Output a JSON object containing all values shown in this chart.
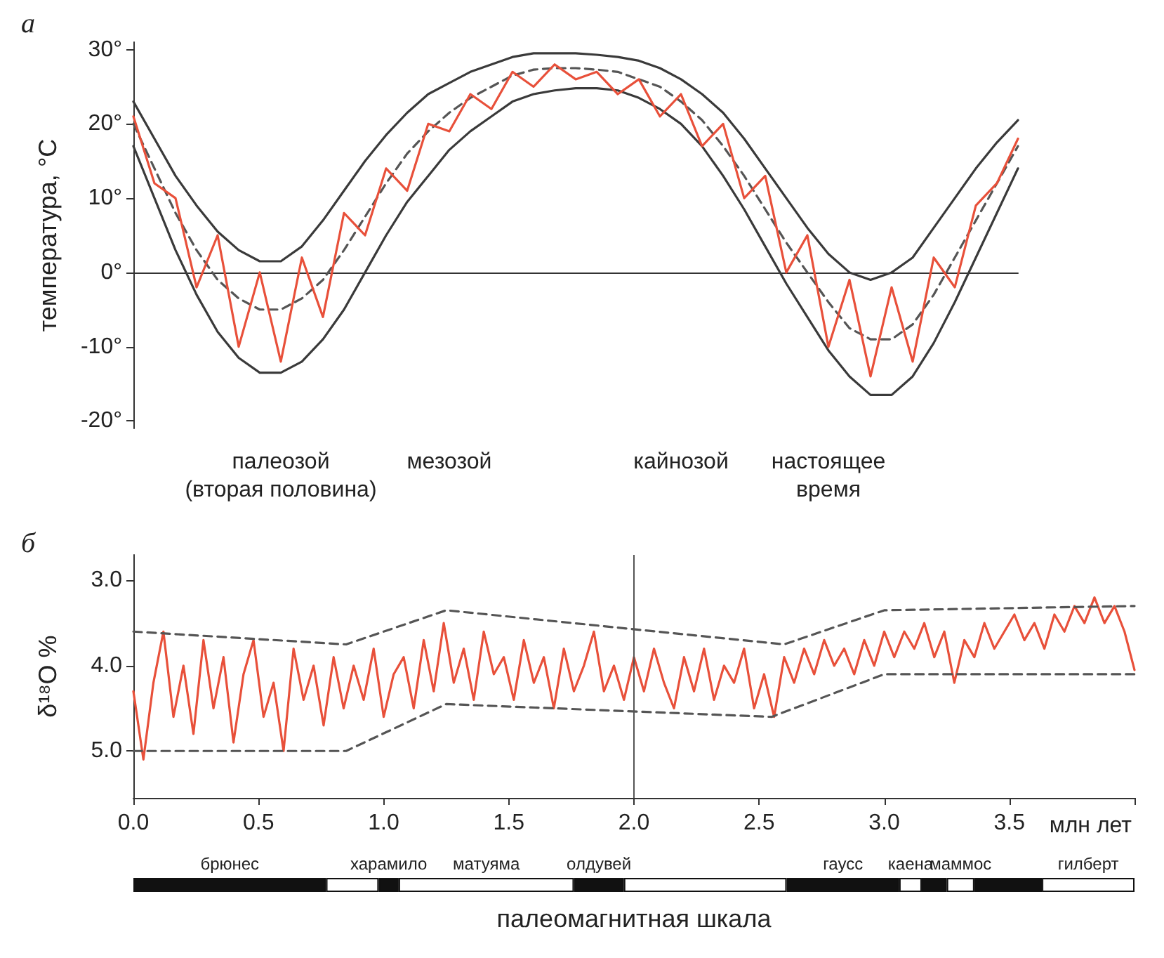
{
  "chart_data": [
    {
      "type": "line",
      "title": "а",
      "ylabel": "температура, °C",
      "categories": [
        null,
        null,
        null,
        null,
        null,
        null,
        null,
        "палеозой\n(вторая половина)",
        null,
        null,
        null,
        null,
        null,
        null,
        null,
        "мезозой",
        null,
        null,
        null,
        null,
        null,
        null,
        null,
        null,
        null,
        null,
        "кайнозой",
        null,
        null,
        null,
        null,
        null,
        null,
        "настоящее\nвремя",
        null,
        null,
        null,
        null,
        null,
        null,
        null,
        null,
        null
      ],
      "ylim": [
        -21,
        31
      ],
      "yticks": [
        {
          "value": -20,
          "label": "-20°"
        },
        {
          "value": -10,
          "label": "-10°"
        },
        {
          "value": 0,
          "label": "0°"
        },
        {
          "value": 10,
          "label": "10°"
        },
        {
          "value": 20,
          "label": "20°"
        },
        {
          "value": 30,
          "label": "30°"
        }
      ],
      "series": [
        {
          "color": "#3a3a3a",
          "values": [
            23,
            18,
            13,
            9,
            5.5,
            3,
            1.5,
            1.5,
            3.5,
            7,
            11,
            15,
            18.5,
            21.5,
            24,
            25.5,
            27,
            28,
            29,
            29.5,
            29.5,
            29.5,
            29.3,
            29,
            28.5,
            27.5,
            26,
            24,
            21.5,
            18,
            14,
            10,
            6,
            2.5,
            0,
            -1,
            0,
            2,
            6,
            10,
            14,
            17.5,
            20.5
          ]
        },
        {
          "color": "#3a3a3a",
          "values": [
            17,
            10,
            3,
            -3,
            -8,
            -11.5,
            -13.5,
            -13.5,
            -12,
            -9,
            -5,
            0,
            5,
            9.5,
            13,
            16.5,
            19,
            21,
            23,
            24,
            24.5,
            24.8,
            24.8,
            24.5,
            23.5,
            22,
            20,
            17,
            13,
            8.5,
            3.5,
            -1.5,
            -6,
            -10.5,
            -14,
            -16.5,
            -16.5,
            -14,
            -9.5,
            -4,
            2,
            8,
            14
          ]
        },
        {
          "color": "#555555",
          "line_style": "dashed",
          "values": [
            20,
            14,
            8,
            3,
            -1,
            -3.5,
            -5,
            -5,
            -3.5,
            -1,
            3,
            7.5,
            12,
            16,
            19,
            21.5,
            23.5,
            25,
            26.5,
            27.3,
            27.5,
            27.5,
            27.3,
            27,
            26,
            25,
            23,
            20.5,
            17,
            13,
            8.5,
            4,
            0,
            -4,
            -7.5,
            -9,
            -9,
            -7,
            -3,
            2,
            7,
            12,
            17
          ]
        },
        {
          "color": "#e8503a",
          "values": [
            21,
            12,
            10,
            -2,
            5,
            -10,
            0,
            -12,
            2,
            -6,
            8,
            5,
            14,
            11,
            20,
            19,
            24,
            22,
            27,
            25,
            28,
            26,
            27,
            24,
            26,
            21,
            24,
            17,
            20,
            10,
            13,
            0,
            5,
            -10,
            -1,
            -14,
            -2,
            -12,
            2,
            -2,
            9,
            12,
            18
          ]
        }
      ]
    },
    {
      "type": "line",
      "title": "б",
      "ylabel": "δ¹⁸O %",
      "xlabel": "млн лет",
      "xlim": [
        0,
        4
      ],
      "xticks": [
        {
          "value": 0,
          "label": "0.0"
        },
        {
          "value": 0.5,
          "label": "0.5"
        },
        {
          "value": 1,
          "label": "1.0"
        },
        {
          "value": 1.5,
          "label": "1.5"
        },
        {
          "value": 2,
          "label": "2.0"
        },
        {
          "value": 2.5,
          "label": "2.5"
        },
        {
          "value": 3,
          "label": "3.0"
        },
        {
          "value": 3.5,
          "label": "3.5"
        },
        {
          "value": 4,
          "label": null
        }
      ],
      "ylim": [
        5.55,
        2.7
      ],
      "yticks": [
        {
          "value": 3,
          "label": "3.0"
        },
        {
          "value": 4,
          "label": "4.0"
        },
        {
          "value": 5,
          "label": "5.0"
        }
      ],
      "series": [
        {
          "color": "#e8503a",
          "x": [
            0,
            0.04,
            0.08,
            0.12,
            0.16,
            0.2,
            0.24,
            0.28,
            0.32,
            0.36,
            0.4,
            0.44,
            0.48,
            0.52,
            0.56,
            0.6,
            0.64,
            0.68,
            0.72,
            0.76,
            0.8,
            0.84,
            0.88,
            0.92,
            0.96,
            1,
            1.04,
            1.08,
            1.12,
            1.16,
            1.2,
            1.24,
            1.28,
            1.32,
            1.36,
            1.4,
            1.44,
            1.48,
            1.52,
            1.56,
            1.6,
            1.64,
            1.68,
            1.72,
            1.76,
            1.8,
            1.84,
            1.88,
            1.92,
            1.96,
            2,
            2.04,
            2.08,
            2.12,
            2.16,
            2.2,
            2.24,
            2.28,
            2.32,
            2.36,
            2.4,
            2.44,
            2.48,
            2.52,
            2.56,
            2.6,
            2.64,
            2.68,
            2.72,
            2.76,
            2.8,
            2.84,
            2.88,
            2.92,
            2.96,
            3,
            3.04,
            3.08,
            3.12,
            3.16,
            3.2,
            3.24,
            3.28,
            3.32,
            3.36,
            3.4,
            3.44,
            3.48,
            3.52,
            3.56,
            3.6,
            3.64,
            3.68,
            3.72,
            3.76,
            3.8,
            3.84,
            3.88,
            3.92,
            3.96,
            4
          ],
          "values": [
            4.3,
            5.1,
            4.2,
            3.6,
            4.6,
            4.0,
            4.8,
            3.7,
            4.5,
            3.9,
            4.9,
            4.1,
            3.7,
            4.6,
            4.2,
            5.0,
            3.8,
            4.4,
            4.0,
            4.7,
            3.9,
            4.5,
            4.0,
            4.4,
            3.8,
            4.6,
            4.1,
            3.9,
            4.5,
            3.7,
            4.3,
            3.5,
            4.2,
            3.8,
            4.4,
            3.6,
            4.1,
            3.9,
            4.4,
            3.7,
            4.2,
            3.9,
            4.5,
            3.8,
            4.3,
            4.0,
            3.6,
            4.3,
            4.0,
            4.4,
            3.9,
            4.3,
            3.8,
            4.2,
            4.5,
            3.9,
            4.3,
            3.8,
            4.4,
            4.0,
            4.2,
            3.8,
            4.5,
            4.1,
            4.6,
            3.9,
            4.2,
            3.8,
            4.1,
            3.7,
            4.0,
            3.8,
            4.1,
            3.7,
            4.0,
            3.6,
            3.9,
            3.6,
            3.8,
            3.5,
            3.9,
            3.6,
            4.2,
            3.7,
            3.9,
            3.5,
            3.8,
            3.6,
            3.4,
            3.7,
            3.5,
            3.8,
            3.4,
            3.6,
            3.3,
            3.5,
            3.2,
            3.5,
            3.3,
            3.6,
            4.05
          ]
        },
        {
          "color": "#555555",
          "line_style": "dashed",
          "x": [
            0,
            0.85,
            1.25,
            2.6,
            3.0,
            4.0
          ],
          "values": [
            3.6,
            3.75,
            3.35,
            3.75,
            3.35,
            3.3
          ]
        },
        {
          "color": "#555555",
          "line_style": "dashed",
          "x": [
            0,
            0.85,
            1.25,
            2.55,
            3.0,
            4.0
          ],
          "values": [
            5.0,
            5.0,
            4.45,
            4.6,
            4.1,
            4.1
          ]
        }
      ],
      "ref_lines": [
        {
          "axis": "x",
          "value": 2,
          "color": "#555555"
        }
      ]
    },
    {
      "type": "bar",
      "orientation": "horizontal",
      "stacked": true,
      "xlabel": "палеомагнитная шкала",
      "categories": [
        null
      ],
      "xlim": [
        0,
        4
      ],
      "series": [
        {
          "name": "брюнес",
          "color": "#111111",
          "values": [
            0.77
          ]
        },
        {
          "color": "#ffffff",
          "values": [
            0.21
          ]
        },
        {
          "name": "харамило",
          "color": "#111111",
          "values": [
            0.08
          ]
        },
        {
          "name": "матуяма",
          "color": "#ffffff",
          "values": [
            0.7
          ]
        },
        {
          "name": "олдувей",
          "color": "#111111",
          "values": [
            0.2
          ]
        },
        {
          "color": "#ffffff",
          "values": [
            0.65
          ]
        },
        {
          "name": "гаусс",
          "color": "#111111",
          "values": [
            0.45
          ]
        },
        {
          "name": "каена",
          "color": "#ffffff",
          "values": [
            0.09
          ]
        },
        {
          "color": "#111111",
          "values": [
            0.1
          ]
        },
        {
          "name": "маммос",
          "color": "#ffffff",
          "values": [
            0.11
          ]
        },
        {
          "color": "#111111",
          "values": [
            0.27
          ]
        },
        {
          "name": "гилберт",
          "color": "#ffffff",
          "values": [
            0.37
          ]
        }
      ]
    }
  ]
}
